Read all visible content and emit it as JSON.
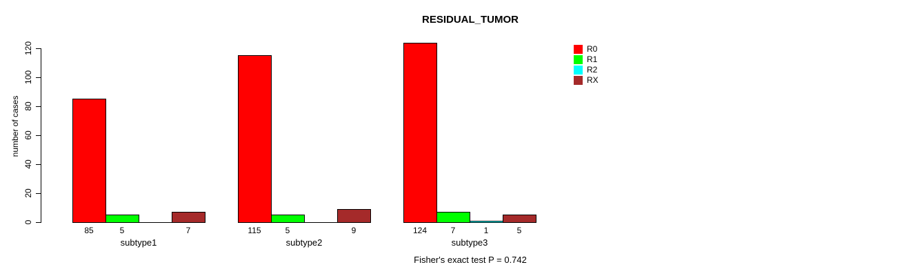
{
  "chart_data": {
    "type": "bar",
    "title": "RESIDUAL_TUMOR",
    "xlabel": "",
    "ylabel": "number of cases",
    "ylim": [
      0,
      120
    ],
    "yticks": [
      0,
      20,
      40,
      60,
      80,
      100,
      120
    ],
    "grid": false,
    "legend_position": "right",
    "categories": [
      "subtype1",
      "subtype2",
      "subtype3"
    ],
    "series": [
      {
        "name": "R0",
        "color": "#FF0000",
        "values": [
          85,
          115,
          124
        ]
      },
      {
        "name": "R1",
        "color": "#00FF00",
        "values": [
          5,
          5,
          7
        ]
      },
      {
        "name": "R2",
        "color": "#00FFFF",
        "values": [
          0,
          0,
          1
        ]
      },
      {
        "name": "RX",
        "color": "#A52A2A",
        "values": [
          7,
          9,
          5
        ]
      }
    ],
    "bar_value_labels": {
      "subtype1": [
        "85",
        "5",
        "",
        "7"
      ],
      "subtype2": [
        "115",
        "5",
        "",
        "9"
      ],
      "subtype3": [
        "124",
        "7",
        "1",
        "5"
      ]
    },
    "annotation": "Fisher's exact test P = 0.742"
  }
}
